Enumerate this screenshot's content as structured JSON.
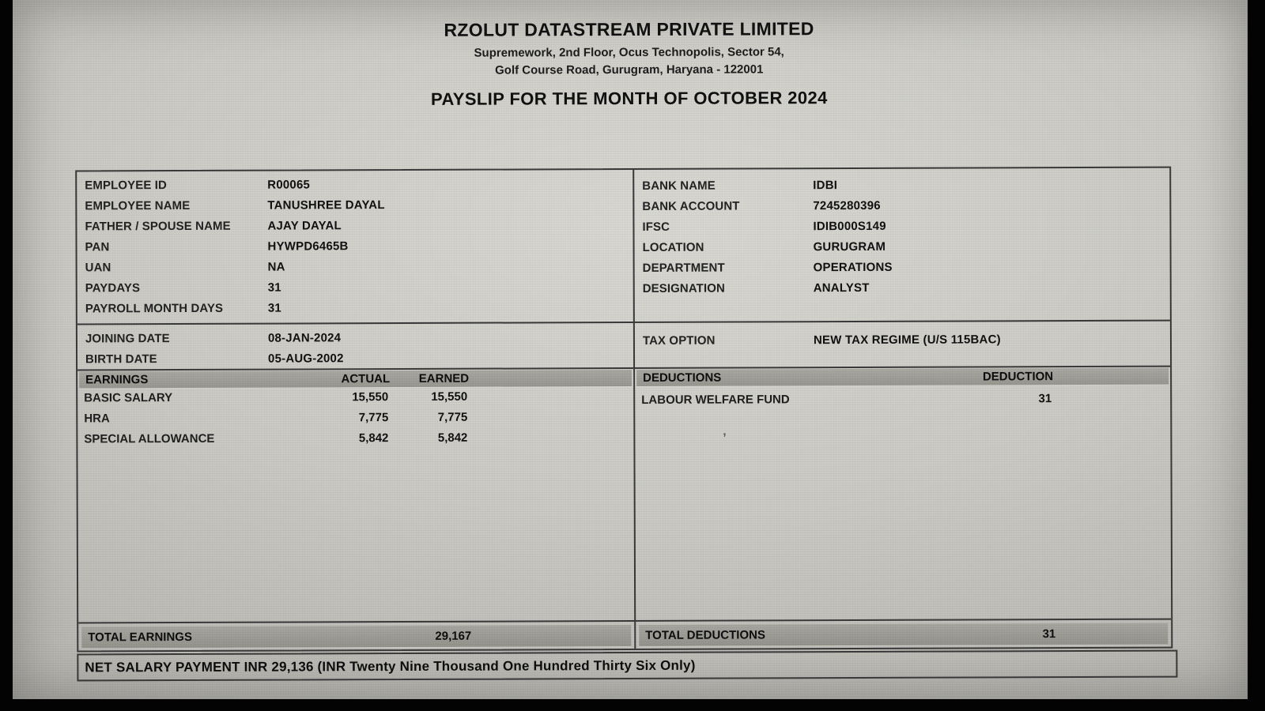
{
  "header": {
    "company_name": "RZOLUT DATASTREAM PRIVATE LIMITED",
    "address_line1": "Supremework, 2nd Floor, Ocus Technopolis, Sector 54,",
    "address_line2": "Golf Course Road, Gurugram, Haryana - 122001",
    "payslip_title": "PAYSLIP FOR THE MONTH OF OCTOBER 2024"
  },
  "employee_info": {
    "rows": [
      {
        "label": "EMPLOYEE ID",
        "value": "R00065"
      },
      {
        "label": "EMPLOYEE NAME",
        "value": "TANUSHREE DAYAL"
      },
      {
        "label": "FATHER / SPOUSE NAME",
        "value": "AJAY DAYAL"
      },
      {
        "label": "PAN",
        "value": "HYWPD6465B"
      },
      {
        "label": "UAN",
        "value": "NA"
      },
      {
        "label": "PAYDAYS",
        "value": "31"
      },
      {
        "label": "PAYROLL MONTH DAYS",
        "value": "31"
      }
    ]
  },
  "bank_info": {
    "rows": [
      {
        "label": "BANK NAME",
        "value": "IDBI"
      },
      {
        "label": "BANK ACCOUNT",
        "value": "7245280396"
      },
      {
        "label": "IFSC",
        "value": "IDIB000S149"
      },
      {
        "label": "LOCATION",
        "value": "GURUGRAM"
      },
      {
        "label": "DEPARTMENT",
        "value": "OPERATIONS"
      },
      {
        "label": "DESIGNATION",
        "value": "ANALYST"
      }
    ]
  },
  "date_info": {
    "rows": [
      {
        "label": "JOINING DATE",
        "value": "08-JAN-2024"
      },
      {
        "label": "BIRTH DATE",
        "value": "05-AUG-2002"
      }
    ]
  },
  "tax_info": {
    "label": "TAX OPTION",
    "value": "NEW TAX REGIME (U/S 115BAC)"
  },
  "earnings": {
    "header": {
      "title": "EARNINGS",
      "col_actual": "ACTUAL",
      "col_earned": "EARNED"
    },
    "rows": [
      {
        "name": "BASIC SALARY",
        "actual": "15,550",
        "earned": "15,550"
      },
      {
        "name": "HRA",
        "actual": "7,775",
        "earned": "7,775"
      },
      {
        "name": "SPECIAL ALLOWANCE",
        "actual": "5,842",
        "earned": "5,842"
      }
    ],
    "total_label": "TOTAL EARNINGS",
    "total_value": "29,167"
  },
  "deductions": {
    "header": {
      "title": "DEDUCTIONS",
      "col_amount": "DEDUCTION"
    },
    "rows": [
      {
        "name": "LABOUR WELFARE FUND",
        "amount": "31"
      }
    ],
    "total_label": "TOTAL DEDUCTIONS",
    "total_value": "31",
    "stray_mark": ","
  },
  "net_salary": {
    "text": "NET SALARY PAYMENT INR 29,136 (INR Twenty Nine Thousand One Hundred Thirty Six Only)"
  },
  "colors": {
    "frame_black": "#030303",
    "screen_gray": "#cbcac4",
    "bar_gray": "#9e9d97",
    "border_dark": "#39393a",
    "text_black": "#111111"
  }
}
